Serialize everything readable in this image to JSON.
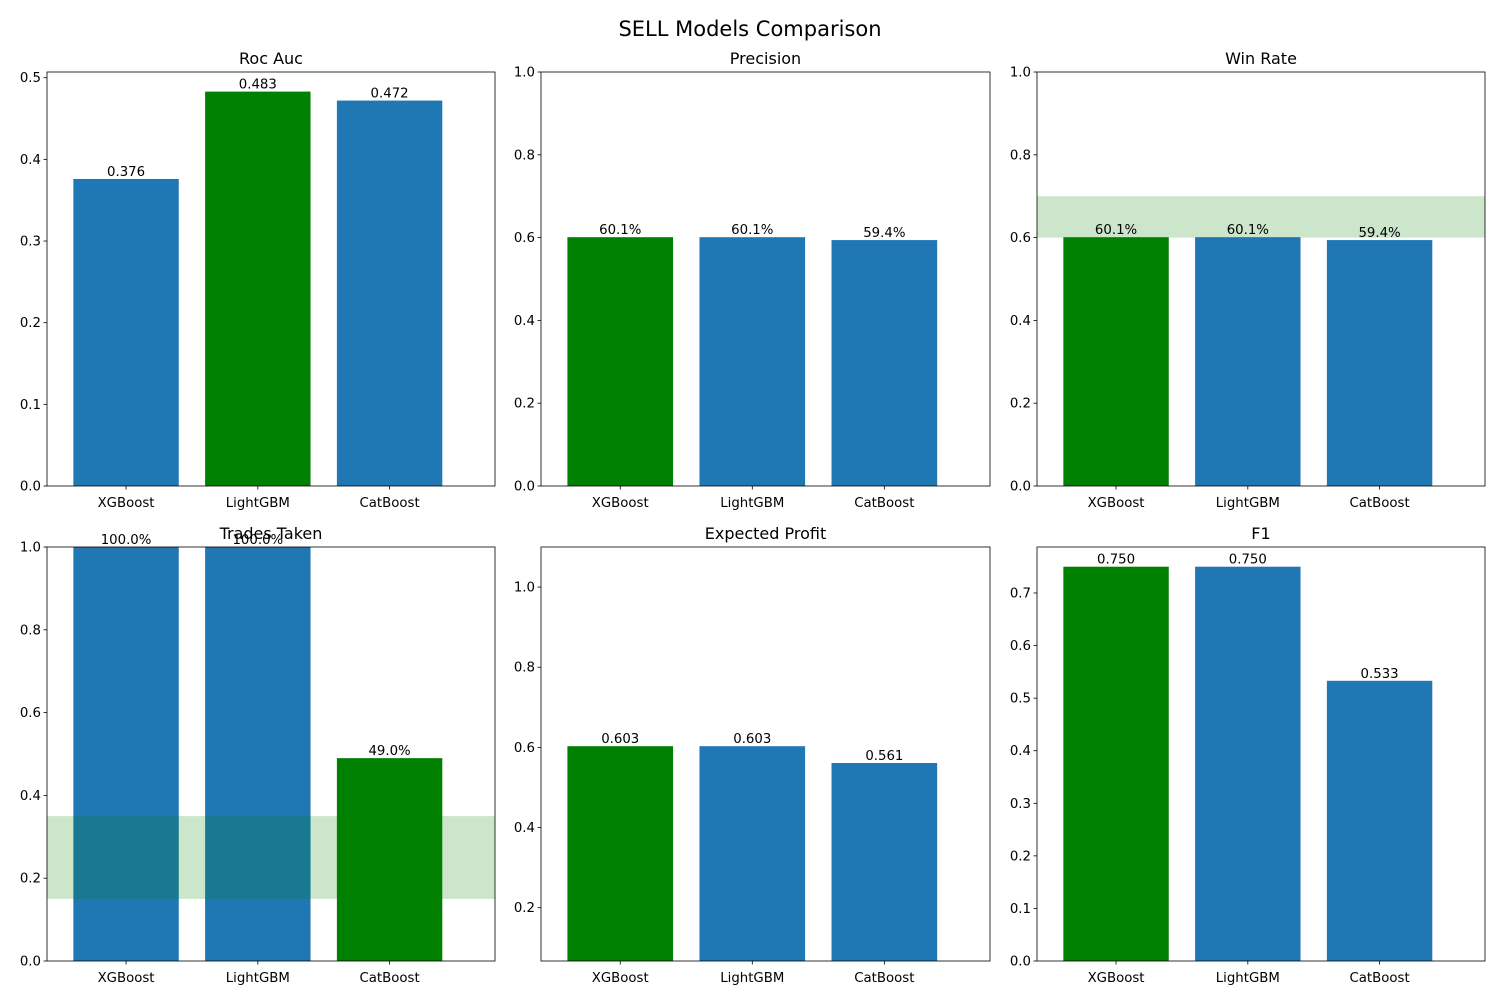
{
  "figure": {
    "title": "SELL Models Comparison"
  },
  "colors": {
    "default_bar": "#1f77b4",
    "best_bar": "#008000",
    "target_band": "#008000"
  },
  "chart_data": [
    {
      "type": "bar",
      "title": "Roc Auc",
      "categories": [
        "XGBoost",
        "LightGBM",
        "CatBoost"
      ],
      "values": [
        0.376,
        0.483,
        0.472
      ],
      "value_labels": [
        "0.376",
        "0.483",
        "0.472"
      ],
      "highlight_index": 1,
      "ylim": [
        0,
        0.507
      ],
      "yticks": [
        0.0,
        0.1,
        0.2,
        0.3,
        0.4,
        0.5
      ],
      "ytick_labels": [
        "0.0",
        "0.1",
        "0.2",
        "0.3",
        "0.4",
        "0.5"
      ],
      "target_band": null
    },
    {
      "type": "bar",
      "title": "Precision",
      "categories": [
        "XGBoost",
        "LightGBM",
        "CatBoost"
      ],
      "values": [
        0.601,
        0.601,
        0.594
      ],
      "value_labels": [
        "60.1%",
        "60.1%",
        "59.4%"
      ],
      "highlight_index": 0,
      "ylim": [
        0,
        1.0
      ],
      "yticks": [
        0.0,
        0.2,
        0.4,
        0.6,
        0.8,
        1.0
      ],
      "ytick_labels": [
        "0.0",
        "0.2",
        "0.4",
        "0.6",
        "0.8",
        "1.0"
      ],
      "target_band": null
    },
    {
      "type": "bar",
      "title": "Win Rate",
      "categories": [
        "XGBoost",
        "LightGBM",
        "CatBoost"
      ],
      "values": [
        0.601,
        0.601,
        0.594
      ],
      "value_labels": [
        "60.1%",
        "60.1%",
        "59.4%"
      ],
      "highlight_index": 0,
      "ylim": [
        0,
        1.0
      ],
      "yticks": [
        0.0,
        0.2,
        0.4,
        0.6,
        0.8,
        1.0
      ],
      "ytick_labels": [
        "0.0",
        "0.2",
        "0.4",
        "0.6",
        "0.8",
        "1.0"
      ],
      "target_band": [
        0.6,
        0.7
      ]
    },
    {
      "type": "bar",
      "title": "Trades Taken",
      "categories": [
        "XGBoost",
        "LightGBM",
        "CatBoost"
      ],
      "values": [
        1.0,
        1.0,
        0.49
      ],
      "value_labels": [
        "100.0%",
        "100.0%",
        "49.0%"
      ],
      "highlight_index": 2,
      "ylim": [
        0,
        1.0
      ],
      "yticks": [
        0.0,
        0.2,
        0.4,
        0.6,
        0.8,
        1.0
      ],
      "ytick_labels": [
        "0.0",
        "0.2",
        "0.4",
        "0.6",
        "0.8",
        "1.0"
      ],
      "target_band": [
        0.15,
        0.35
      ]
    },
    {
      "type": "bar",
      "title": "Expected Profit",
      "categories": [
        "XGBoost",
        "LightGBM",
        "CatBoost"
      ],
      "values": [
        0.603,
        0.603,
        0.561
      ],
      "value_labels": [
        "0.603",
        "0.603",
        "0.561"
      ],
      "highlight_index": 0,
      "ylim": [
        0.067,
        1.1
      ],
      "yticks": [
        0.2,
        0.4,
        0.6,
        0.8,
        1.0
      ],
      "ytick_labels": [
        "0.2",
        "0.4",
        "0.6",
        "0.8",
        "1.0"
      ],
      "target_band": null
    },
    {
      "type": "bar",
      "title": "F1",
      "categories": [
        "XGBoost",
        "LightGBM",
        "CatBoost"
      ],
      "values": [
        0.75,
        0.75,
        0.533
      ],
      "value_labels": [
        "0.750",
        "0.750",
        "0.533"
      ],
      "highlight_index": 0,
      "ylim": [
        0,
        0.7875
      ],
      "yticks": [
        0.0,
        0.1,
        0.2,
        0.3,
        0.4,
        0.5,
        0.6,
        0.7
      ],
      "ytick_labels": [
        "0.0",
        "0.1",
        "0.2",
        "0.3",
        "0.4",
        "0.5",
        "0.6",
        "0.7"
      ],
      "target_band": null
    }
  ]
}
